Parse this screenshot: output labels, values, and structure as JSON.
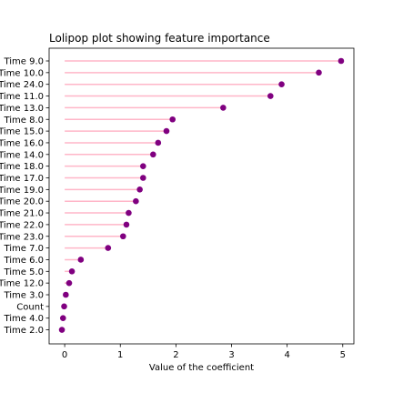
{
  "chart_data": {
    "type": "lollipop",
    "orientation": "horizontal",
    "title": "Lolipop plot showing feature importance",
    "xlabel": "Value of the coefficient",
    "ylabel": "",
    "xlim": [
      -0.28,
      5.2
    ],
    "x_ticks": [
      0,
      1,
      2,
      3,
      4,
      5
    ],
    "grid": false,
    "legend": "none",
    "stem_color": "#ffb6c8",
    "marker_color": "#800080",
    "categories": [
      "Time 9.0",
      "Time 10.0",
      "Time 24.0",
      "Time 11.0",
      "Time 13.0",
      "Time 8.0",
      "Time 15.0",
      "Time 16.0",
      "Time 14.0",
      "Time 18.0",
      "Time 17.0",
      "Time 19.0",
      "Time 20.0",
      "Time 21.0",
      "Time 22.0",
      "Time 23.0",
      "Time 7.0",
      "Time 6.0",
      "Time 5.0",
      "Time 12.0",
      "Time 3.0",
      "Count",
      "Time 4.0",
      "Time 2.0"
    ],
    "values": [
      4.97,
      4.57,
      3.9,
      3.7,
      2.85,
      1.94,
      1.83,
      1.68,
      1.59,
      1.41,
      1.41,
      1.35,
      1.28,
      1.15,
      1.11,
      1.05,
      0.78,
      0.29,
      0.13,
      0.08,
      0.02,
      -0.01,
      -0.03,
      -0.05
    ]
  }
}
